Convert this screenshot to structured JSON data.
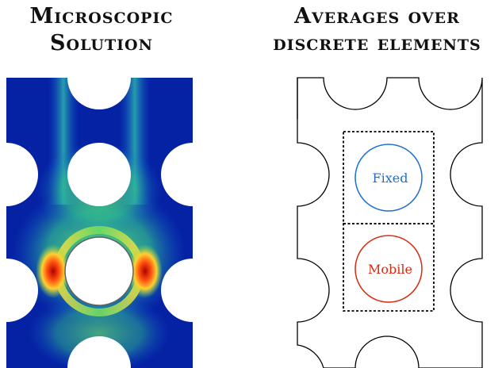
{
  "left_panel": {
    "title_line1": "Microscopic",
    "title_line2": "Solution"
  },
  "right_panel": {
    "title_line1": "Averages over",
    "title_line2": "discrete elements",
    "upper_element_label": "Fixed",
    "lower_element_label": "Mobile"
  },
  "colors": {
    "fixed_circle": "#1e6fd0",
    "mobile_circle": "#d82a10",
    "field_low": "#00108c",
    "field_mid": "#30d080",
    "field_high": "#e01010",
    "outline": "#000000"
  }
}
